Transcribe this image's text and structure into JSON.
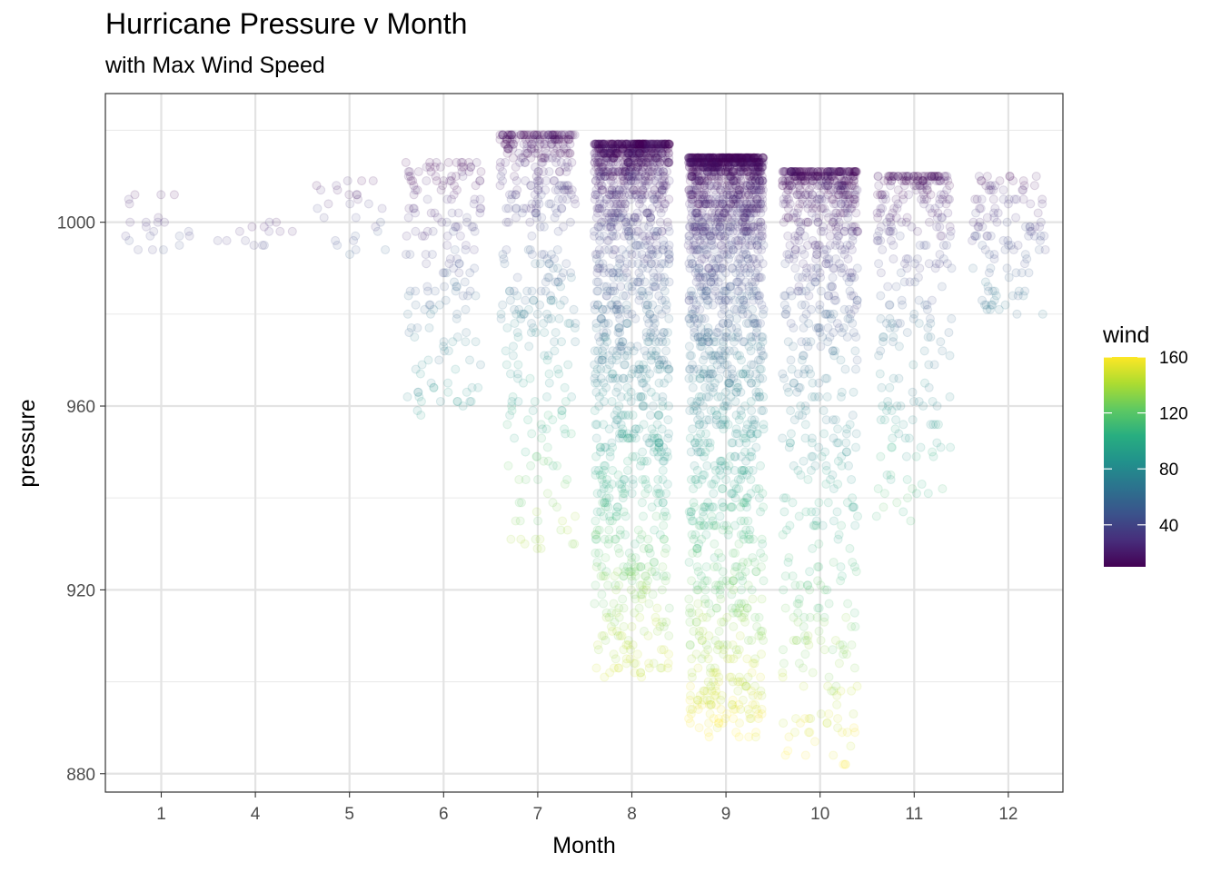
{
  "chart_data": {
    "type": "scatter",
    "title": "Hurricane Pressure v Month",
    "subtitle": "with Max Wind Speed",
    "xlabel": "Month",
    "ylabel": "pressure",
    "categories": [
      "1",
      "4",
      "5",
      "6",
      "7",
      "8",
      "9",
      "10",
      "11",
      "12"
    ],
    "ylim": [
      876,
      1028
    ],
    "y_ticks": [
      880,
      920,
      960,
      1000
    ],
    "grid": true,
    "point_opacity": 0.1,
    "jitter": true,
    "color_scale": {
      "variable": "wind",
      "name": "viridis",
      "domain": [
        10,
        160
      ],
      "ticks": [
        40,
        80,
        120,
        160
      ]
    },
    "legend": {
      "title": "wind",
      "placement": "right"
    },
    "summary_by_month": [
      {
        "month": "1",
        "pressure_min": 994,
        "pressure_max": 1009,
        "wind_max": 45
      },
      {
        "month": "4",
        "pressure_min": 994,
        "pressure_max": 1003,
        "wind_max": 45
      },
      {
        "month": "5",
        "pressure_min": 992,
        "pressure_max": 1012,
        "wind_max": 55
      },
      {
        "month": "6",
        "pressure_min": 958,
        "pressure_max": 1016,
        "wind_max": 90
      },
      {
        "month": "7",
        "pressure_min": 929,
        "pressure_max": 1022,
        "wind_max": 140
      },
      {
        "month": "8",
        "pressure_min": 901,
        "pressure_max": 1020,
        "wind_max": 150
      },
      {
        "month": "9",
        "pressure_min": 888,
        "pressure_max": 1017,
        "wind_max": 160
      },
      {
        "month": "10",
        "pressure_min": 882,
        "pressure_max": 1014,
        "wind_max": 160
      },
      {
        "month": "11",
        "pressure_min": 933,
        "pressure_max": 1013,
        "wind_max": 120
      },
      {
        "month": "12",
        "pressure_min": 980,
        "pressure_max": 1013,
        "wind_max": 70
      }
    ]
  }
}
